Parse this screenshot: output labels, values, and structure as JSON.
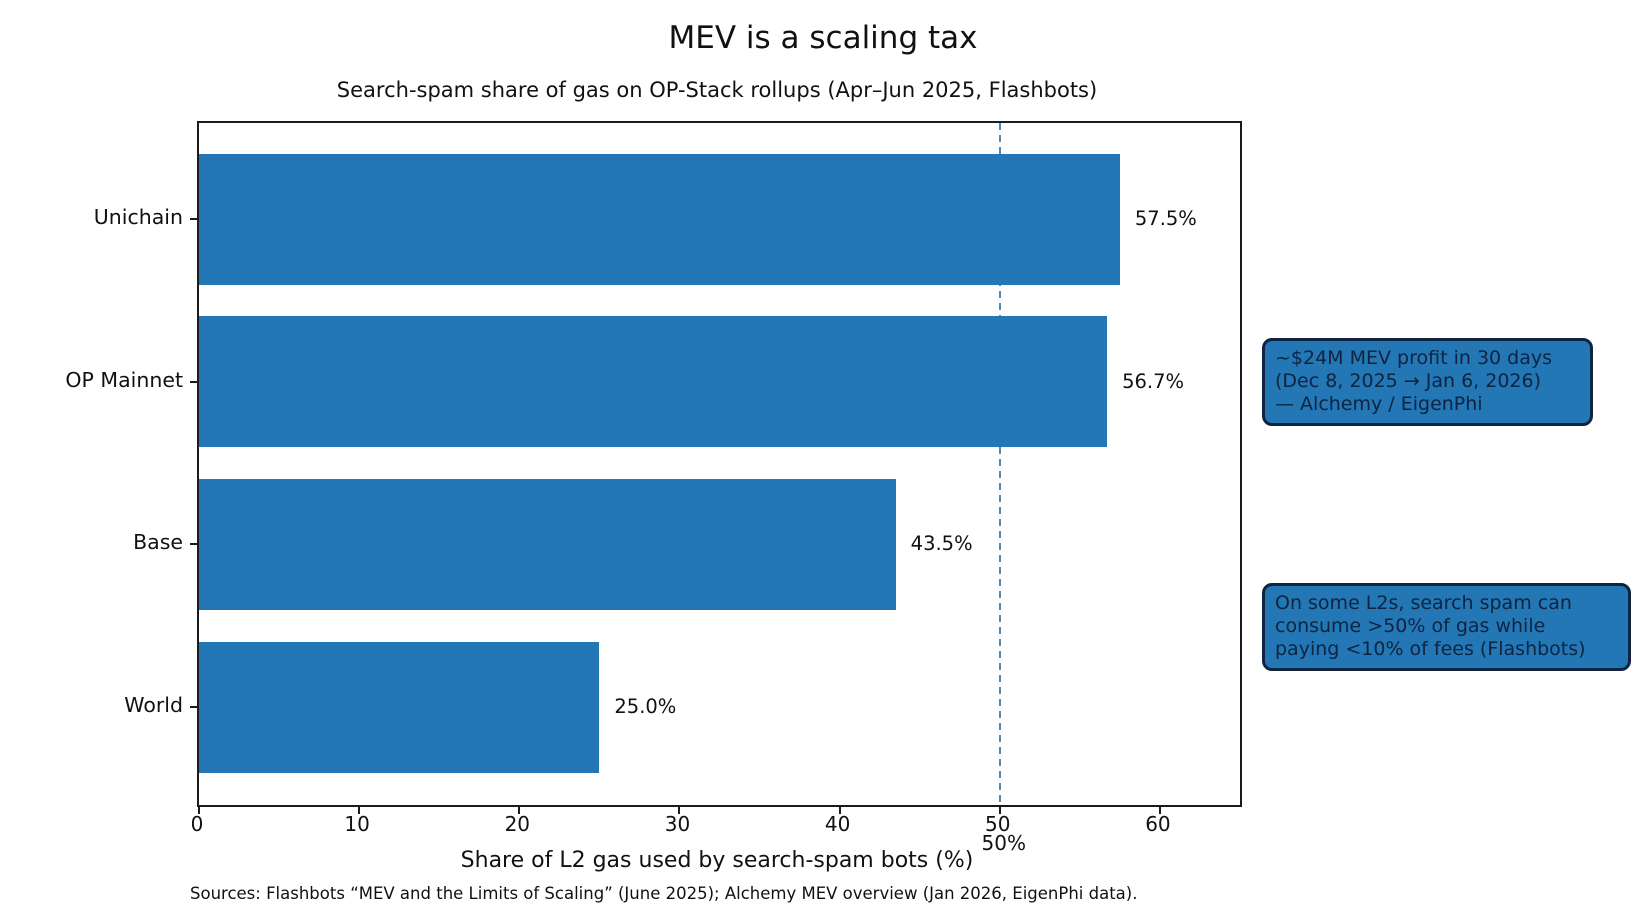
{
  "title": "MEV is a scaling tax",
  "subtitle": "Search-spam share of gas on OP-Stack rollups (Apr–Jun 2025, Flashbots)",
  "footer": "Sources: Flashbots “MEV and the Limits of Scaling” (June 2025); Alchemy MEV overview (Jan 2026, EigenPhi data).",
  "chart_data": {
    "type": "bar",
    "orientation": "horizontal",
    "categories": [
      "Unichain",
      "OP Mainnet",
      "Base",
      "World"
    ],
    "values": [
      57.5,
      56.7,
      43.5,
      25.0
    ],
    "value_labels": [
      "57.5%",
      "56.7%",
      "43.5%",
      "25.0%"
    ],
    "title": "MEV is a scaling tax",
    "subtitle": "Search-spam share of gas on OP-Stack rollups (Apr–Jun 2025, Flashbots)",
    "xlabel": "Share of L2 gas used by search-spam bots (%)",
    "ylabel": "",
    "xticks": [
      0,
      10,
      20,
      30,
      40,
      50,
      60
    ],
    "xlim": [
      0,
      65
    ],
    "grid": false,
    "legend": false,
    "bar_color": "#2277b4",
    "reference_line": {
      "x": 50,
      "label": "50%",
      "style": "dashed",
      "color": "#4d8ab8"
    },
    "annotations": [
      {
        "text": "~$24M MEV profit in 30 days\n(Dec 8, 2025 → Jan 6, 2026)\n— Alchemy / EigenPhi",
        "fill": "#2277b4",
        "border": "#0e2440"
      },
      {
        "text": "On some L2s, search spam can\nconsume >50% of gas while\npaying <10% of fees (Flashbots)",
        "fill": "#2277b4",
        "border": "#0e2440"
      }
    ]
  }
}
